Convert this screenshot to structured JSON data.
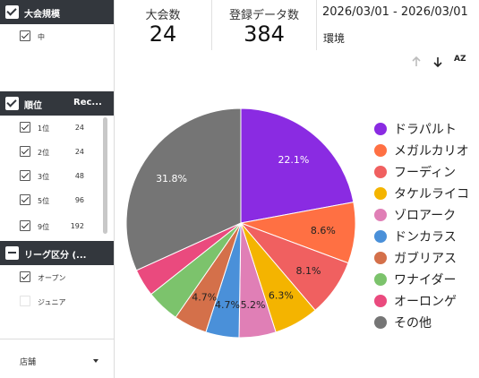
{
  "filters": {
    "size": {
      "title": "大会規模",
      "items": [
        {
          "label": "中",
          "checked": true
        }
      ]
    },
    "rank": {
      "title": "順位",
      "col2": "Rec...",
      "items": [
        {
          "label": "1位",
          "count": "24",
          "checked": true
        },
        {
          "label": "2位",
          "count": "24",
          "checked": true
        },
        {
          "label": "3位",
          "count": "48",
          "checked": true
        },
        {
          "label": "5位",
          "count": "96",
          "checked": true
        },
        {
          "label": "9位",
          "count": "192",
          "checked": true
        }
      ]
    },
    "league": {
      "title": "リーグ区分 (...",
      "items": [
        {
          "label": "オープン",
          "checked": true
        },
        {
          "label": "ジュニア",
          "checked": false
        }
      ]
    },
    "store": {
      "label": "店舗"
    }
  },
  "scorecards": {
    "tournaments": {
      "label": "大会数",
      "value": "24"
    },
    "entries": {
      "label": "登録データ数",
      "value": "384"
    }
  },
  "date_range": "2026/03/01 - 2026/03/01",
  "environment_label": "環境",
  "sort_icons": {
    "up": "arrow-up-icon",
    "down": "arrow-down-icon",
    "az": "AZ"
  },
  "chart_data": {
    "type": "pie",
    "title": "",
    "labels": [
      "ドラパルト",
      "メガルカリオ",
      "フーディン",
      "タケルライコ",
      "ゾロアーク",
      "ドンカラス",
      "ガブリアス",
      "ワナイダー",
      "オーロンゲ",
      "その他"
    ],
    "values": [
      22.1,
      8.6,
      8.1,
      6.3,
      5.2,
      4.7,
      4.7,
      4.7,
      3.9,
      31.8
    ],
    "value_labels": [
      "22.1%",
      "8.6%",
      "8.1%",
      "6.3%",
      "5.2%",
      "4.7%",
      "4.7%",
      "",
      "",
      "31.8%"
    ],
    "colors": [
      "#8a2be2",
      "#ff7043",
      "#f06060",
      "#f4b400",
      "#e07fb6",
      "#4a90d9",
      "#d4704a",
      "#7cc36c",
      "#ea4a7e",
      "#757575"
    ],
    "legend_position": "right"
  }
}
